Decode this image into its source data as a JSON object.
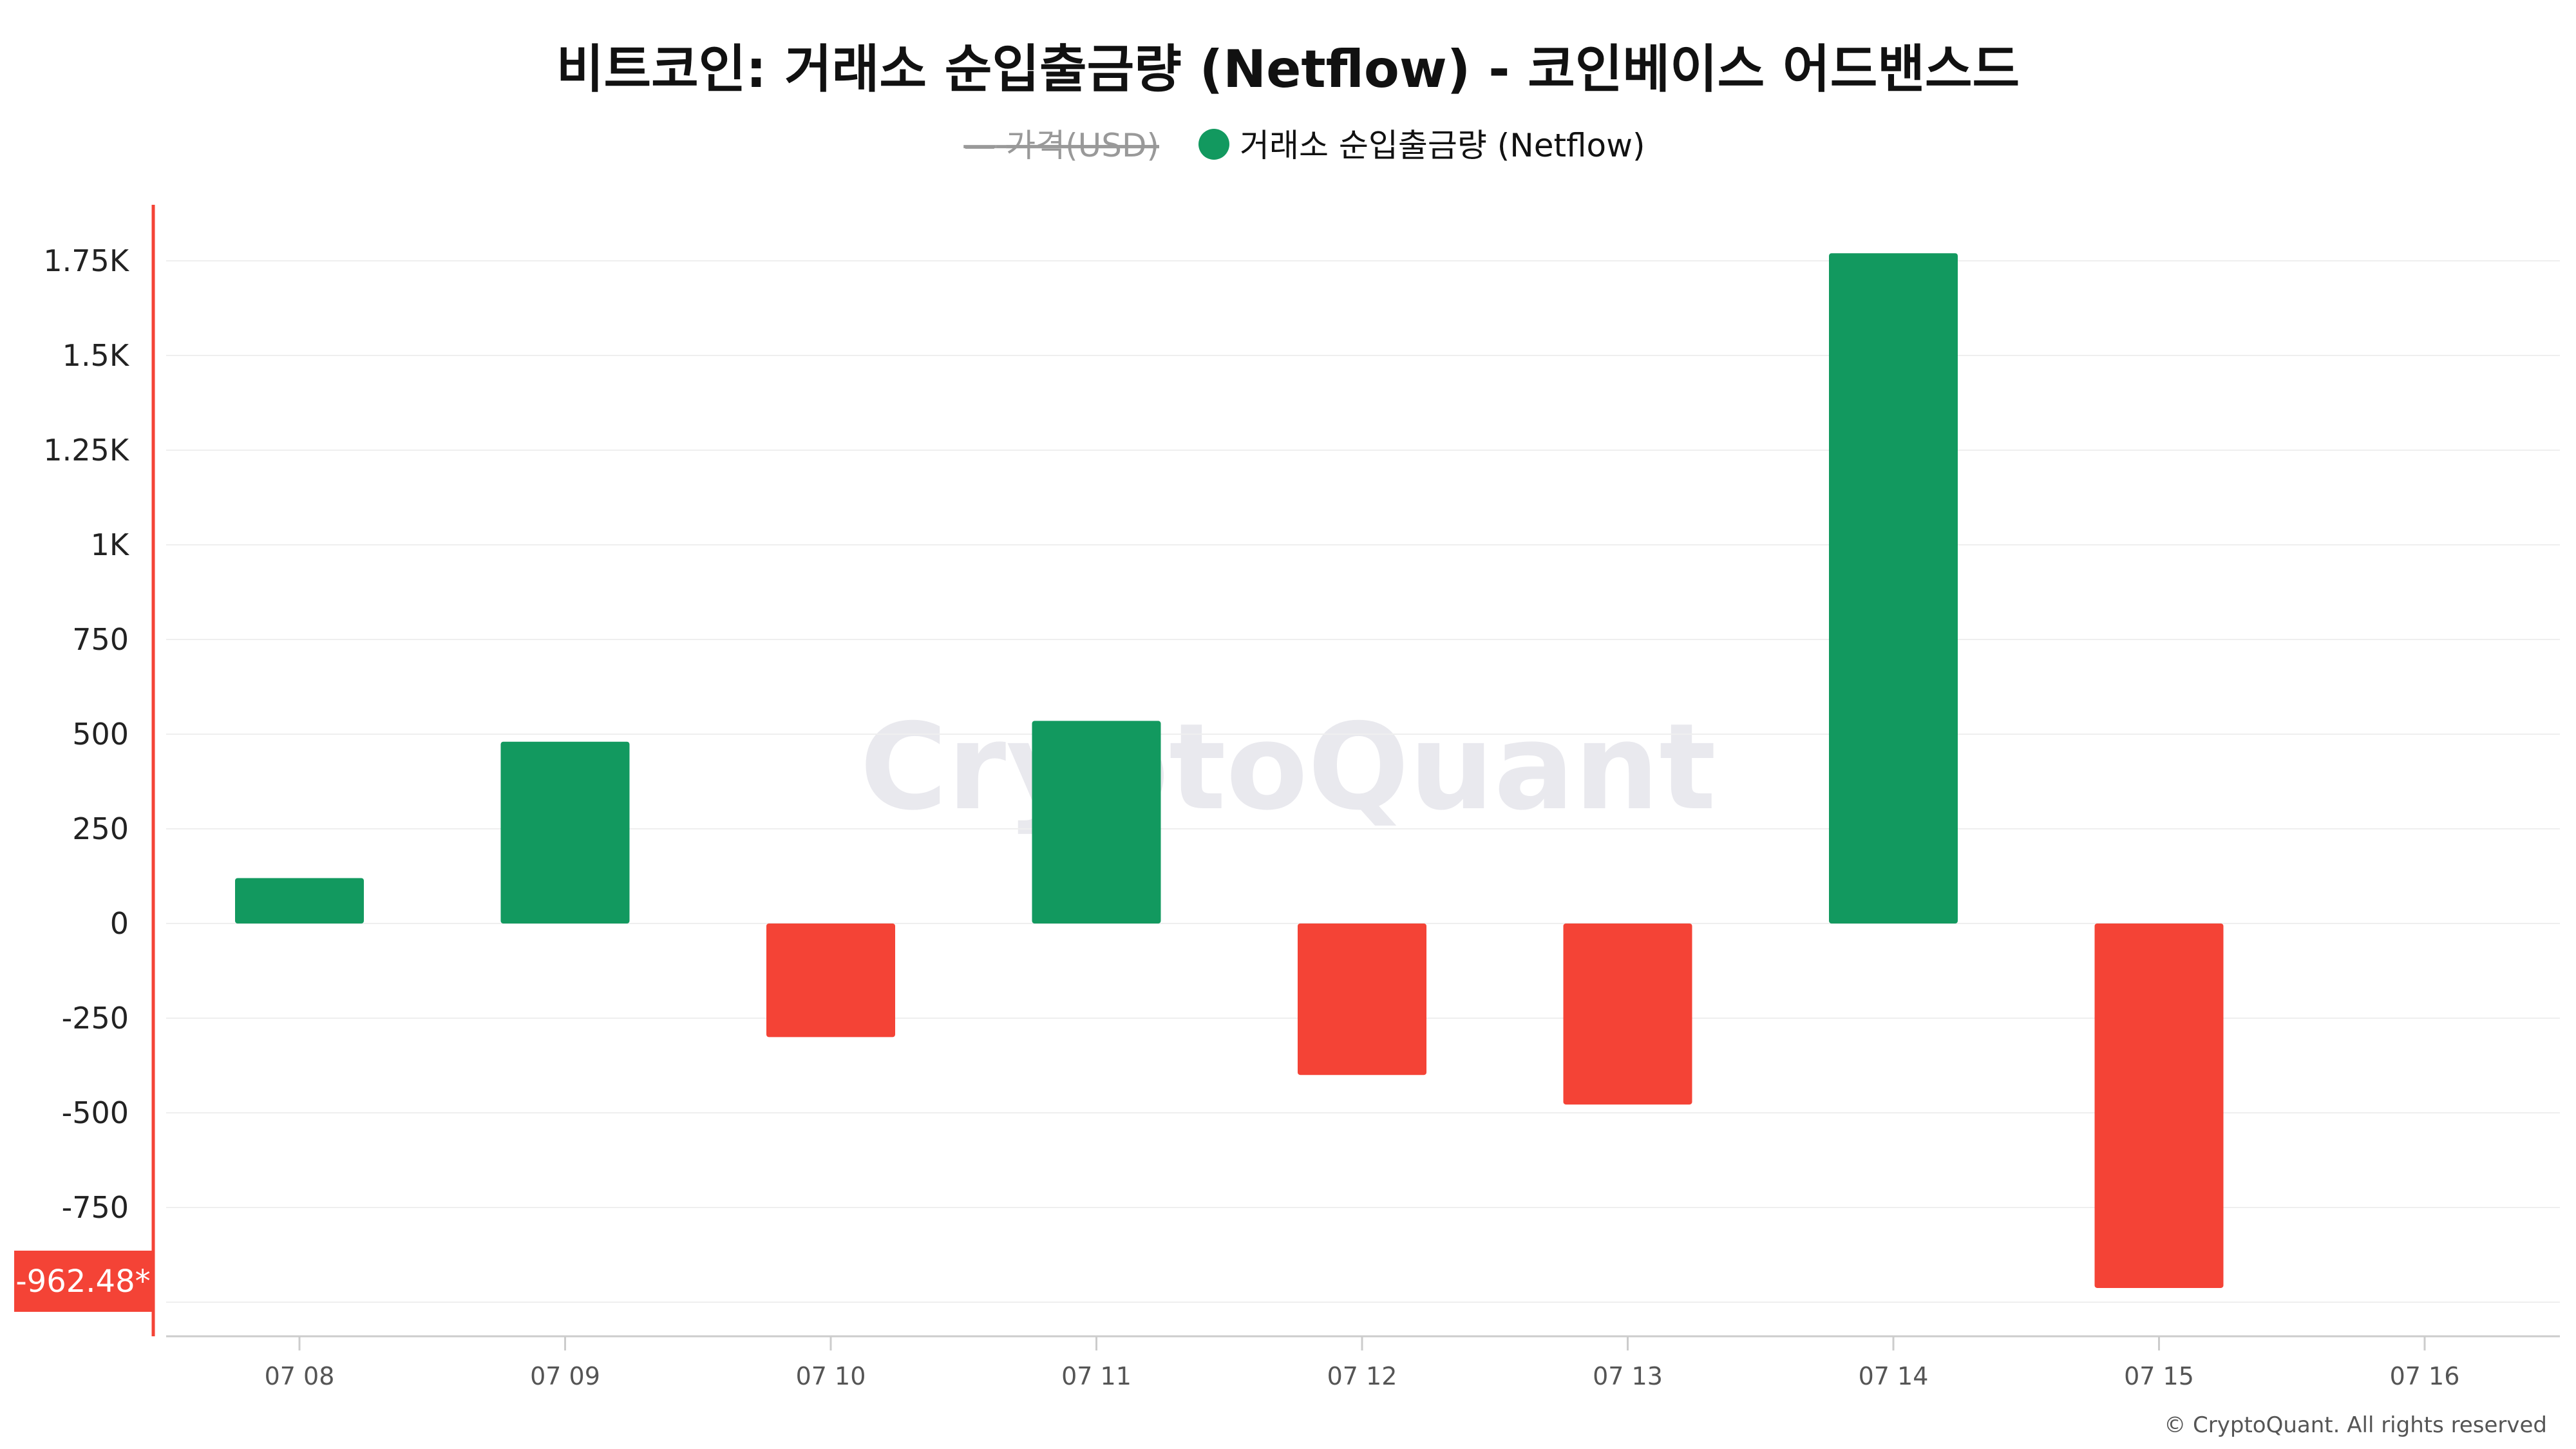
{
  "chart_data": {
    "type": "bar",
    "title": "비트코인: 거래소 순입출금량 (Netflow) - 코인베이스 어드밴스드",
    "legend": [
      {
        "label": "가격(USD)",
        "hidden": true,
        "color": "#999999",
        "marker": "—"
      },
      {
        "label": "거래소 순입출금량 (Netflow)",
        "hidden": false,
        "color": "#12995F"
      }
    ],
    "legend_position": "top-center",
    "categories": [
      "07 08",
      "07 09",
      "07 10",
      "07 11",
      "07 12",
      "07 13",
      "07 14",
      "07 15",
      "07 16"
    ],
    "series": [
      {
        "name": "거래소 순입출금량 (Netflow)",
        "values": [
          120,
          480,
          -300,
          535,
          -400,
          -478,
          1770,
          -962.48,
          null
        ]
      }
    ],
    "positive_color": "#12995F",
    "negative_color": "#F44336",
    "ylim": [
      -1000,
      1750
    ],
    "yticks": [
      {
        "value": 1750,
        "label": "1.75K"
      },
      {
        "value": 1500,
        "label": "1.5K"
      },
      {
        "value": 1250,
        "label": "1.25K"
      },
      {
        "value": 1000,
        "label": "1K"
      },
      {
        "value": 750,
        "label": "750"
      },
      {
        "value": 500,
        "label": "500"
      },
      {
        "value": 250,
        "label": "250"
      },
      {
        "value": 0,
        "label": "0"
      },
      {
        "value": -250,
        "label": "-250"
      },
      {
        "value": -500,
        "label": "-500"
      },
      {
        "value": -750,
        "label": "-750"
      }
    ],
    "last_value": {
      "value": -962.48,
      "label": "-962.48*",
      "color": "#F44336"
    },
    "grid": true,
    "watermark": "CryptoQuant",
    "copyright": "© CryptoQuant. All rights reserved"
  }
}
